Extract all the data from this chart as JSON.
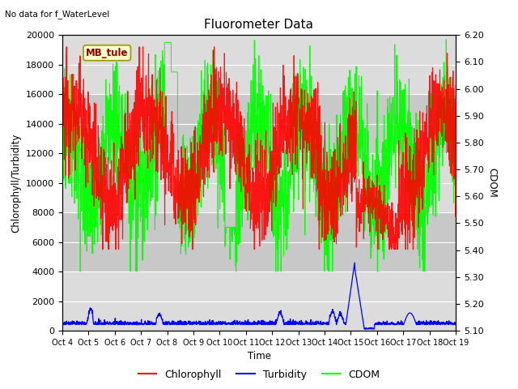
{
  "title": "Fluorometer Data",
  "xlabel": "Time",
  "ylabel_left": "Chlorophyll/Turbidity",
  "ylabel_right": "CDOM",
  "text_no_data": "No data for f_WaterLevel",
  "station_label": "MB_tule",
  "ylim_left": [
    0,
    20000
  ],
  "ylim_right": [
    5.1,
    6.2
  ],
  "background_color": "#ffffff",
  "plot_bg_color": "#dcdcdc",
  "grid_color": "#ffffff",
  "colors": {
    "chlorophyll": "red",
    "turbidity": "blue",
    "cdom": "lime"
  },
  "legend_items": [
    "Chlorophyll",
    "Turbidity",
    "CDOM"
  ],
  "x_tick_labels": [
    "Oct 4",
    "Oct 5",
    "Oct 6",
    "Oct 7",
    "Oct 8",
    "Oct 9",
    "Oct 10",
    "Oct 11",
    "Oct 12",
    "Oct 13",
    "Oct 14",
    "Oct 15",
    "Oct 16",
    "Oct 17",
    "Oct 18",
    "Oct 19"
  ]
}
